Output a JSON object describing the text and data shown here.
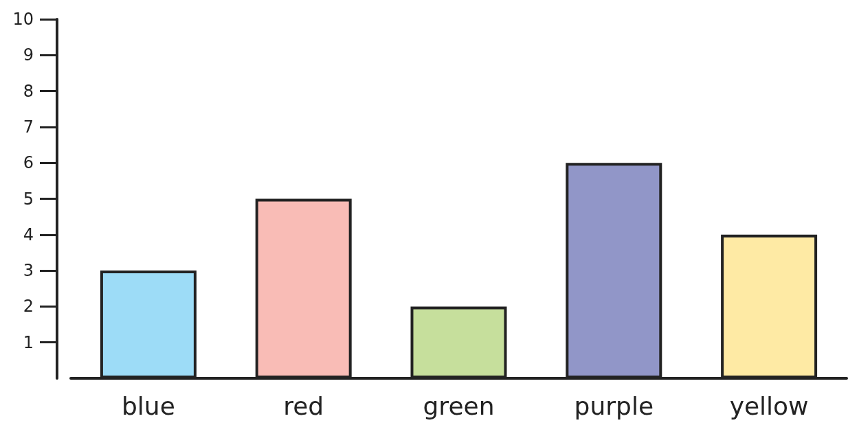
{
  "chart_data": {
    "type": "bar",
    "categories": [
      "blue",
      "red",
      "green",
      "purple",
      "yellow"
    ],
    "values": [
      3,
      5,
      2,
      6,
      4
    ],
    "colors": [
      "#9ddcf7",
      "#f9bcb6",
      "#c6df9c",
      "#9196c8",
      "#feeaa4"
    ],
    "ylim": [
      0,
      10
    ],
    "yticks": [
      1,
      2,
      3,
      4,
      5,
      6,
      7,
      8,
      9,
      10
    ],
    "grid": false
  }
}
